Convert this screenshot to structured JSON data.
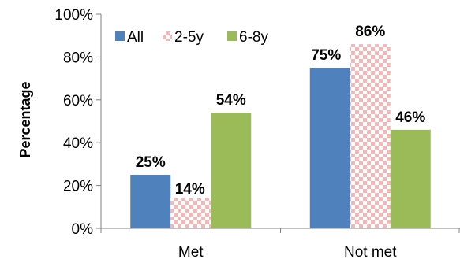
{
  "chart_data": {
    "type": "bar",
    "categories": [
      "Met",
      "Not met"
    ],
    "series": [
      {
        "name": "All",
        "values": [
          25,
          75
        ],
        "color": "#4f81bd",
        "pattern": "solid"
      },
      {
        "name": "2-5y",
        "values": [
          14,
          86
        ],
        "color": "#f2b8b8",
        "pattern": "checker"
      },
      {
        "name": "6-8y",
        "values": [
          54,
          46
        ],
        "color": "#9bbb59",
        "pattern": "solid"
      }
    ],
    "data_labels": [
      [
        "25%",
        "75%"
      ],
      [
        "14%",
        "86%"
      ],
      [
        "54%",
        "46%"
      ]
    ],
    "ylabel": "Percentage",
    "xlabel": "",
    "ylim": [
      0,
      100
    ],
    "yticks": [
      "0%",
      "20%",
      "40%",
      "60%",
      "80%",
      "100%"
    ],
    "grid": false,
    "legend_position": "top-left"
  }
}
